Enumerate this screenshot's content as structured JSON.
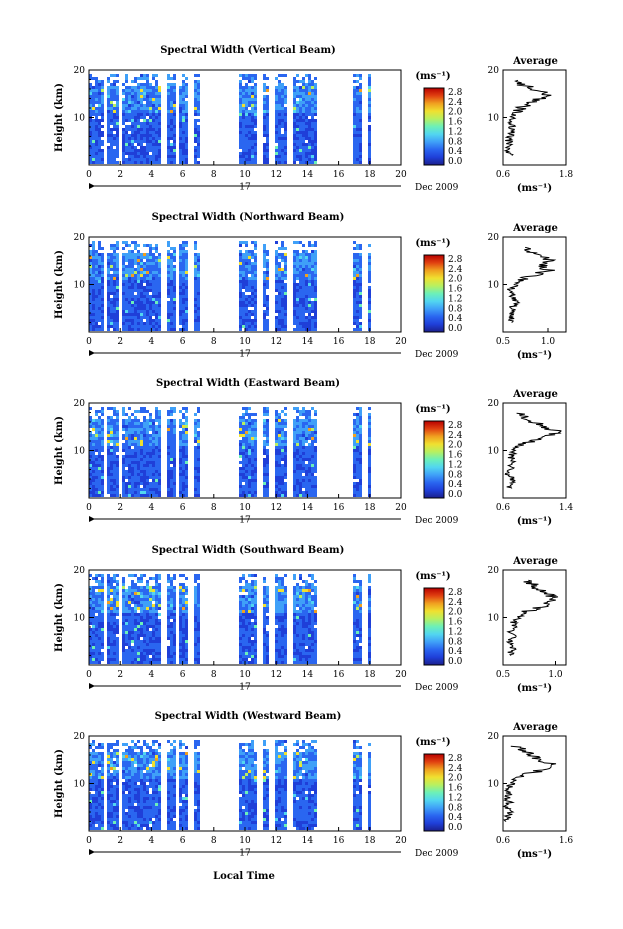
{
  "figure": {
    "xlabel": "Local Time",
    "date_label": "Dec 2009",
    "day_label": "17",
    "colorbar_unit": "(ms⁻¹)",
    "colorbar_ticks": [
      "0.0",
      "0.4",
      "0.8",
      "1.2",
      "1.6",
      "2.0",
      "2.4",
      "2.8"
    ],
    "colorbar_colors": [
      "#1b1f8c",
      "#1f3fd8",
      "#2a66f0",
      "#3fa0f8",
      "#52d6f0",
      "#6cf0b8",
      "#b8f060",
      "#f0e030",
      "#f0a020",
      "#e04010",
      "#b80000"
    ],
    "profile_title": "Average",
    "profile_xlabel": "(ms⁻¹)",
    "x_ticks": [
      "0",
      "2",
      "4",
      "6",
      "8",
      "10",
      "12",
      "14",
      "16",
      "18",
      "20"
    ],
    "y_ticks": [
      "10",
      "20"
    ],
    "ylabel": "Height (km)"
  },
  "chart_data": [
    {
      "type": "heatmap",
      "title": "Spectral Width (Vertical Beam)",
      "xlabel": "Local Time",
      "ylabel": "Height (km)",
      "xlim": [
        0,
        20
      ],
      "ylim": [
        0,
        20
      ],
      "data_gaps_hours": [
        [
          0.85,
          1.0
        ],
        [
          1.9,
          2.1
        ],
        [
          4.6,
          4.9
        ],
        [
          5.4,
          5.7
        ],
        [
          6.3,
          6.6
        ],
        [
          7.1,
          9.5
        ],
        [
          10.7,
          11.1
        ],
        [
          11.5,
          11.8
        ],
        [
          12.6,
          13.0
        ],
        [
          14.5,
          16.9
        ],
        [
          17.5,
          17.8
        ]
      ],
      "colorbar": {
        "label": "(ms⁻¹)",
        "min": 0.0,
        "max": 2.8
      },
      "profile": {
        "title": "Average",
        "xlabel": "(ms⁻¹)",
        "xlim": [
          0.6,
          1.8
        ],
        "xticks": [
          "0.6",
          "1.8"
        ],
        "ylim": [
          0,
          20
        ],
        "height_km": [
          2,
          3,
          4,
          5,
          6,
          7,
          8,
          9,
          10,
          11,
          12,
          13,
          14,
          15,
          16,
          17,
          18
        ],
        "value": [
          0.72,
          0.7,
          0.74,
          0.71,
          0.73,
          0.75,
          0.78,
          0.74,
          0.8,
          0.85,
          0.95,
          1.1,
          1.3,
          1.45,
          1.2,
          0.95,
          0.9
        ]
      }
    },
    {
      "type": "heatmap",
      "title": "Spectral Width (Northward Beam)",
      "xlabel": "Local Time",
      "ylabel": "Height (km)",
      "xlim": [
        0,
        20
      ],
      "ylim": [
        0,
        20
      ],
      "data_gaps_hours": [
        [
          0.85,
          1.0
        ],
        [
          1.9,
          2.1
        ],
        [
          4.6,
          4.9
        ],
        [
          5.4,
          5.7
        ],
        [
          6.3,
          6.6
        ],
        [
          7.1,
          9.5
        ],
        [
          10.7,
          11.1
        ],
        [
          11.5,
          11.8
        ],
        [
          12.6,
          13.0
        ],
        [
          14.5,
          16.9
        ],
        [
          17.5,
          17.8
        ]
      ],
      "colorbar": {
        "label": "(ms⁻¹)",
        "min": 0.0,
        "max": 2.8
      },
      "profile": {
        "title": "Average",
        "xlabel": "(ms⁻¹)",
        "xlim": [
          0.5,
          1.2
        ],
        "xticks": [
          "0.5",
          "1.0"
        ],
        "ylim": [
          0,
          20
        ],
        "height_km": [
          2,
          3,
          4,
          5,
          6,
          7,
          8,
          9,
          10,
          11,
          12,
          13,
          14,
          15,
          16,
          17,
          18
        ],
        "value": [
          0.6,
          0.58,
          0.62,
          0.6,
          0.65,
          0.6,
          0.62,
          0.58,
          0.64,
          0.7,
          0.85,
          1.0,
          0.95,
          1.05,
          0.9,
          0.8,
          0.72
        ]
      }
    },
    {
      "type": "heatmap",
      "title": "Spectral Width (Eastward Beam)",
      "xlabel": "Local Time",
      "ylabel": "Height (km)",
      "xlim": [
        0,
        20
      ],
      "ylim": [
        0,
        20
      ],
      "data_gaps_hours": [
        [
          0.85,
          1.0
        ],
        [
          1.9,
          2.1
        ],
        [
          4.6,
          4.9
        ],
        [
          5.4,
          5.7
        ],
        [
          6.3,
          6.6
        ],
        [
          7.1,
          9.5
        ],
        [
          10.7,
          11.1
        ],
        [
          11.5,
          11.8
        ],
        [
          12.6,
          13.0
        ],
        [
          14.5,
          16.9
        ],
        [
          17.5,
          17.8
        ]
      ],
      "colorbar": {
        "label": "(ms⁻¹)",
        "min": 0.0,
        "max": 2.8
      },
      "profile": {
        "title": "Average",
        "xlabel": "(ms⁻¹)",
        "xlim": [
          0.6,
          1.4
        ],
        "xticks": [
          "0.6",
          "1.4"
        ],
        "ylim": [
          0,
          20
        ],
        "height_km": [
          2,
          3,
          4,
          5,
          6,
          7,
          8,
          9,
          10,
          11,
          12,
          13,
          14,
          15,
          16,
          17,
          18
        ],
        "value": [
          0.68,
          0.7,
          0.72,
          0.66,
          0.7,
          0.68,
          0.72,
          0.7,
          0.75,
          0.8,
          0.95,
          1.15,
          1.3,
          1.1,
          1.0,
          0.85,
          0.78
        ]
      }
    },
    {
      "type": "heatmap",
      "title": "Spectral Width (Southward Beam)",
      "xlabel": "Local Time",
      "ylabel": "Height (km)",
      "xlim": [
        0,
        20
      ],
      "ylim": [
        0,
        20
      ],
      "data_gaps_hours": [
        [
          0.85,
          1.0
        ],
        [
          1.9,
          2.1
        ],
        [
          4.6,
          4.9
        ],
        [
          5.4,
          5.7
        ],
        [
          6.3,
          6.6
        ],
        [
          7.1,
          9.5
        ],
        [
          10.7,
          11.1
        ],
        [
          11.5,
          11.8
        ],
        [
          12.6,
          13.0
        ],
        [
          14.5,
          16.9
        ],
        [
          17.5,
          17.8
        ]
      ],
      "colorbar": {
        "label": "(ms⁻¹)",
        "min": 0.0,
        "max": 2.8
      },
      "profile": {
        "title": "Average",
        "xlabel": "(ms⁻¹)",
        "xlim": [
          0.5,
          1.1
        ],
        "xticks": [
          "0.5",
          "1.0"
        ],
        "ylim": [
          0,
          20
        ],
        "height_km": [
          2,
          3,
          4,
          5,
          6,
          7,
          8,
          9,
          10,
          11,
          12,
          13,
          14,
          15,
          16,
          17,
          18
        ],
        "value": [
          0.56,
          0.58,
          0.6,
          0.57,
          0.6,
          0.58,
          0.62,
          0.6,
          0.64,
          0.7,
          0.82,
          0.95,
          1.0,
          0.92,
          0.85,
          0.78,
          0.7
        ]
      }
    },
    {
      "type": "heatmap",
      "title": "Spectral Width (Westward Beam)",
      "xlabel": "Local Time",
      "ylabel": "Height (km)",
      "xlim": [
        0,
        20
      ],
      "ylim": [
        0,
        20
      ],
      "data_gaps_hours": [
        [
          0.85,
          1.0
        ],
        [
          1.9,
          2.1
        ],
        [
          4.6,
          4.9
        ],
        [
          5.4,
          5.7
        ],
        [
          6.3,
          6.6
        ],
        [
          7.1,
          9.5
        ],
        [
          10.7,
          11.1
        ],
        [
          11.5,
          11.8
        ],
        [
          12.6,
          13.0
        ],
        [
          14.5,
          16.9
        ],
        [
          17.5,
          17.8
        ]
      ],
      "colorbar": {
        "label": "(ms⁻¹)",
        "min": 0.0,
        "max": 2.8
      },
      "profile": {
        "title": "Average",
        "xlabel": "(ms⁻¹)",
        "xlim": [
          0.6,
          1.6
        ],
        "xticks": [
          "0.6",
          "1.6"
        ],
        "ylim": [
          0,
          20
        ],
        "height_km": [
          2,
          3,
          4,
          5,
          6,
          7,
          8,
          9,
          10,
          11,
          12,
          13,
          14,
          15,
          16,
          17,
          18
        ],
        "value": [
          0.66,
          0.68,
          0.7,
          0.65,
          0.7,
          0.66,
          0.7,
          0.68,
          0.74,
          0.8,
          1.0,
          1.25,
          1.4,
          1.2,
          1.05,
          0.9,
          0.8
        ]
      }
    }
  ]
}
